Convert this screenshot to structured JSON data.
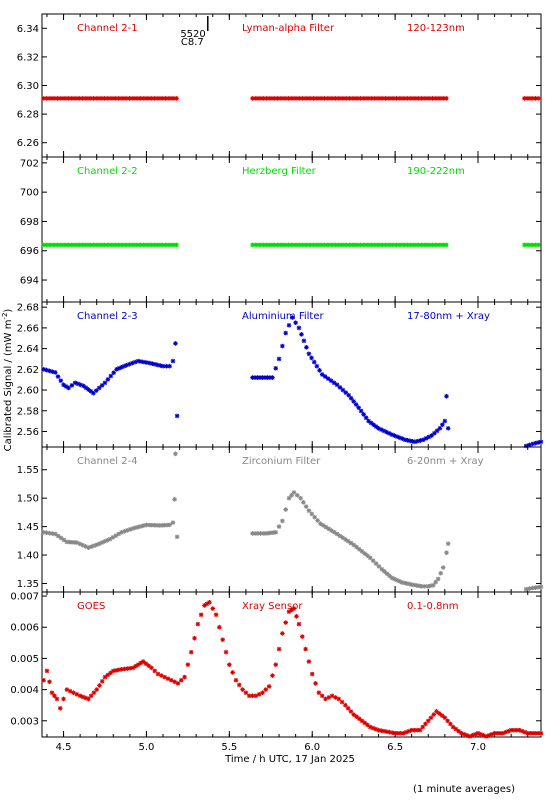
{
  "ylabel_main": "Calibrated Signal / (mW m",
  "ylabel_sup": "-2",
  "ylabel_close": ")",
  "xlabel": "Time / h UTC, 17 Jan 2025",
  "footnote": "(1 minute averages)",
  "x_ticks": [
    "4.5",
    "5.0",
    "5.5",
    "6.0",
    "6.5",
    "7.0"
  ],
  "x_tick_values": [
    4.5,
    5.0,
    5.5,
    6.0,
    6.5,
    7.0
  ],
  "xlim": [
    4.37,
    7.38
  ],
  "flare_marker": {
    "x": 5.37,
    "label_top": "5520",
    "label_bottom": "C8.7"
  },
  "colors": {
    "ch1": "#dd0000",
    "ch2": "#00dd00",
    "ch3": "#0000cc",
    "ch4": "#888888",
    "goes": "#dd0000"
  },
  "chart_data": [
    {
      "type": "scatter",
      "channel": "Channel 2-1",
      "filter": "Lyman-alpha Filter",
      "band": "120-123nm",
      "color": "#dd0000",
      "ylim": [
        6.25,
        6.35
      ],
      "yticks": [
        "6.26",
        "6.28",
        "6.30",
        "6.32",
        "6.34"
      ],
      "ytick_values": [
        6.26,
        6.28,
        6.3,
        6.32,
        6.34
      ],
      "segments": [
        {
          "x_start": 4.38,
          "x_end": 5.19,
          "y": 6.291
        },
        {
          "x_start": 5.64,
          "x_end": 6.82,
          "y": 6.291
        },
        {
          "x_start": 7.28,
          "x_end": 7.38,
          "y": 6.291
        }
      ]
    },
    {
      "type": "scatter",
      "channel": "Channel 2-2",
      "filter": "Herzberg Filter",
      "band": "190-222nm",
      "color": "#00dd00",
      "ylim": [
        692.5,
        702.4
      ],
      "yticks": [
        "694",
        "696",
        "698",
        "700",
        "702"
      ],
      "ytick_values": [
        694,
        696,
        698,
        700,
        702
      ],
      "segments": [
        {
          "x_start": 4.38,
          "x_end": 5.19,
          "y": 696.4
        },
        {
          "x_start": 5.64,
          "x_end": 6.82,
          "y": 696.4
        },
        {
          "x_start": 7.28,
          "x_end": 7.38,
          "y": 696.4
        }
      ]
    },
    {
      "type": "scatter",
      "channel": "Channel 2-3",
      "filter": "Aluminium Filter",
      "band": "17-80nm + Xray",
      "color": "#0000cc",
      "ylim": [
        2.545,
        2.685
      ],
      "yticks": [
        "2.56",
        "2.58",
        "2.60",
        "2.62",
        "2.64",
        "2.66",
        "2.68"
      ],
      "ytick_values": [
        2.56,
        2.58,
        2.6,
        2.62,
        2.64,
        2.66,
        2.68
      ],
      "segments": [
        {
          "points": [
            [
              4.38,
              2.62
            ],
            [
              4.45,
              2.617
            ],
            [
              4.5,
              2.605
            ],
            [
              4.53,
              2.602
            ],
            [
              4.57,
              2.607
            ],
            [
              4.62,
              2.604
            ],
            [
              4.68,
              2.597
            ],
            [
              4.75,
              2.607
            ],
            [
              4.82,
              2.62
            ],
            [
              4.88,
              2.624
            ],
            [
              4.95,
              2.628
            ],
            [
              5.02,
              2.626
            ],
            [
              5.1,
              2.623
            ],
            [
              5.14,
              2.623
            ],
            [
              5.16,
              2.628
            ],
            [
              5.175,
              2.645
            ],
            [
              5.185,
              2.575
            ]
          ]
        },
        {
          "points": [
            [
              5.64,
              2.612
            ],
            [
              5.7,
              2.612
            ],
            [
              5.76,
              2.612
            ],
            [
              5.8,
              2.63
            ],
            [
              5.84,
              2.655
            ],
            [
              5.88,
              2.67
            ],
            [
              5.92,
              2.66
            ],
            [
              5.98,
              2.635
            ],
            [
              6.06,
              2.615
            ],
            [
              6.15,
              2.605
            ],
            [
              6.22,
              2.595
            ],
            [
              6.28,
              2.583
            ],
            [
              6.34,
              2.57
            ],
            [
              6.4,
              2.563
            ],
            [
              6.48,
              2.557
            ],
            [
              6.56,
              2.552
            ],
            [
              6.62,
              2.55
            ],
            [
              6.67,
              2.552
            ],
            [
              6.72,
              2.556
            ],
            [
              6.77,
              2.563
            ],
            [
              6.8,
              2.57
            ],
            [
              6.81,
              2.594
            ],
            [
              6.82,
              2.563
            ]
          ]
        },
        {
          "points": [
            [
              7.29,
              2.546
            ],
            [
              7.33,
              2.548
            ],
            [
              7.38,
              2.55
            ]
          ]
        }
      ]
    },
    {
      "type": "scatter",
      "channel": "Channel 2-4",
      "filter": "Zirconium Filter",
      "band": "6-20nm + Xray",
      "color": "#888888",
      "ylim": [
        1.335,
        1.59
      ],
      "yticks": [
        "1.35",
        "1.40",
        "1.45",
        "1.50",
        "1.55"
      ],
      "ytick_values": [
        1.35,
        1.4,
        1.45,
        1.5,
        1.55
      ],
      "segments": [
        {
          "points": [
            [
              4.38,
              1.44
            ],
            [
              4.45,
              1.437
            ],
            [
              4.52,
              1.423
            ],
            [
              4.58,
              1.422
            ],
            [
              4.65,
              1.413
            ],
            [
              4.7,
              1.418
            ],
            [
              4.78,
              1.428
            ],
            [
              4.85,
              1.44
            ],
            [
              4.92,
              1.447
            ],
            [
              5.0,
              1.453
            ],
            [
              5.08,
              1.452
            ],
            [
              5.14,
              1.453
            ],
            [
              5.16,
              1.457
            ],
            [
              5.17,
              1.498
            ],
            [
              5.175,
              1.578
            ],
            [
              5.185,
              1.432
            ]
          ]
        },
        {
          "points": [
            [
              5.64,
              1.438
            ],
            [
              5.72,
              1.438
            ],
            [
              5.78,
              1.44
            ],
            [
              5.82,
              1.46
            ],
            [
              5.86,
              1.5
            ],
            [
              5.89,
              1.51
            ],
            [
              5.93,
              1.5
            ],
            [
              5.98,
              1.478
            ],
            [
              6.05,
              1.455
            ],
            [
              6.15,
              1.437
            ],
            [
              6.25,
              1.418
            ],
            [
              6.35,
              1.395
            ],
            [
              6.42,
              1.375
            ],
            [
              6.48,
              1.36
            ],
            [
              6.54,
              1.352
            ],
            [
              6.6,
              1.348
            ],
            [
              6.66,
              1.345
            ],
            [
              6.7,
              1.345
            ],
            [
              6.73,
              1.347
            ],
            [
              6.76,
              1.358
            ],
            [
              6.79,
              1.378
            ],
            [
              6.81,
              1.404
            ],
            [
              6.82,
              1.42
            ]
          ]
        },
        {
          "points": [
            [
              7.29,
              1.34
            ],
            [
              7.33,
              1.342
            ],
            [
              7.38,
              1.344
            ]
          ]
        }
      ]
    },
    {
      "type": "scatter",
      "channel": "GOES",
      "filter": "Xray Sensor",
      "band": "0.1-0.8nm",
      "color": "#dd0000",
      "ylim": [
        0.00248,
        0.00713
      ],
      "yticks": [
        "0.003",
        "0.004",
        "0.005",
        "0.006",
        "0.007"
      ],
      "ytick_values": [
        0.003,
        0.004,
        0.005,
        0.006,
        0.007
      ],
      "segments": [
        {
          "points": [
            [
              4.38,
              0.0043
            ],
            [
              4.4,
              0.0046
            ],
            [
              4.43,
              0.0039
            ],
            [
              4.46,
              0.0037
            ],
            [
              4.48,
              0.0034
            ],
            [
              4.5,
              0.0037
            ],
            [
              4.52,
              0.004
            ],
            [
              4.56,
              0.0039
            ],
            [
              4.6,
              0.0038
            ],
            [
              4.65,
              0.0037
            ],
            [
              4.7,
              0.004
            ],
            [
              4.75,
              0.0044
            ],
            [
              4.8,
              0.0046
            ],
            [
              4.85,
              0.00465
            ],
            [
              4.92,
              0.0047
            ],
            [
              4.98,
              0.0049
            ],
            [
              5.03,
              0.0047
            ],
            [
              5.07,
              0.0045
            ],
            [
              5.11,
              0.0044
            ],
            [
              5.15,
              0.0043
            ],
            [
              5.19,
              0.0042
            ],
            [
              5.23,
              0.0044
            ],
            [
              5.27,
              0.0052
            ],
            [
              5.31,
              0.0061
            ],
            [
              5.35,
              0.0067
            ],
            [
              5.38,
              0.0068
            ],
            [
              5.42,
              0.0064
            ],
            [
              5.46,
              0.0056
            ],
            [
              5.5,
              0.0048
            ],
            [
              5.54,
              0.0043
            ],
            [
              5.58,
              0.004
            ],
            [
              5.62,
              0.0038
            ],
            [
              5.66,
              0.0038
            ],
            [
              5.7,
              0.0039
            ],
            [
              5.74,
              0.0041
            ],
            [
              5.78,
              0.0048
            ],
            [
              5.82,
              0.0058
            ],
            [
              5.86,
              0.0065
            ],
            [
              5.89,
              0.0066
            ],
            [
              5.92,
              0.0061
            ],
            [
              5.96,
              0.0053
            ],
            [
              6.0,
              0.0045
            ],
            [
              6.04,
              0.0039
            ],
            [
              6.08,
              0.0037
            ],
            [
              6.12,
              0.0038
            ],
            [
              6.16,
              0.0037
            ],
            [
              6.2,
              0.0035
            ],
            [
              6.25,
              0.0032
            ],
            [
              6.3,
              0.003
            ],
            [
              6.35,
              0.0028
            ],
            [
              6.4,
              0.0027
            ],
            [
              6.45,
              0.00265
            ],
            [
              6.5,
              0.0026
            ],
            [
              6.55,
              0.0026
            ],
            [
              6.6,
              0.0027
            ],
            [
              6.65,
              0.0027
            ],
            [
              6.7,
              0.003
            ],
            [
              6.75,
              0.0033
            ],
            [
              6.8,
              0.0031
            ],
            [
              6.85,
              0.0028
            ],
            [
              6.9,
              0.0026
            ],
            [
              6.95,
              0.0025
            ],
            [
              7.0,
              0.0026
            ],
            [
              7.05,
              0.0025
            ],
            [
              7.1,
              0.0026
            ],
            [
              7.15,
              0.0026
            ],
            [
              7.2,
              0.0027
            ],
            [
              7.25,
              0.0027
            ],
            [
              7.3,
              0.0026
            ],
            [
              7.38,
              0.0026
            ]
          ]
        }
      ]
    }
  ]
}
